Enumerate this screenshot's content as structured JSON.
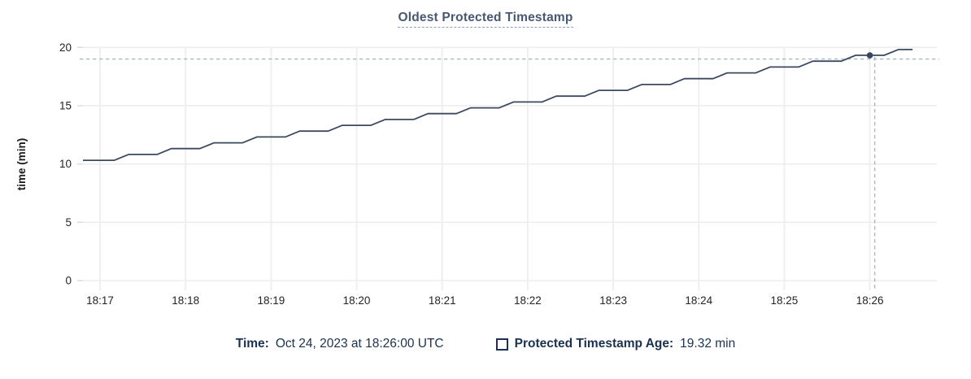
{
  "page": {
    "background": "#ffffff"
  },
  "chart": {
    "title": "Oldest Protected Timestamp",
    "title_color": "#475872"
  },
  "legend": {
    "time_label": "Time:",
    "time_value": "Oct 24, 2023 at 18:26:00 UTC",
    "series_label": "Protected Timestamp Age:",
    "series_value": "19.32 min",
    "text_color": "#1b3150"
  },
  "chart_data": {
    "type": "line",
    "title": "Oldest Protected Timestamp",
    "xlabel": "",
    "ylabel": "time (min)",
    "ylim": [
      0,
      20
    ],
    "yticks": [
      0,
      5,
      10,
      15,
      20
    ],
    "xtick_labels": [
      "18:17",
      "18:18",
      "18:19",
      "18:20",
      "18:21",
      "18:22",
      "18:23",
      "18:24",
      "18:25",
      "18:26"
    ],
    "x_domain_time": [
      "18:16:48",
      "18:26:47"
    ],
    "grid": true,
    "legend_position": "bottom",
    "line_color": "#3b4a60",
    "dot_color": "#39465e",
    "crosshair_color": "#a5bac9",
    "gridline_color": "#ededed",
    "axis_label_color": "#242424",
    "series": [
      {
        "name": "Protected Timestamp Age",
        "unit": "min",
        "points": [
          [
            "18:16:48",
            10.32
          ],
          [
            "18:17:10",
            10.32
          ],
          [
            "18:17:20",
            10.82
          ],
          [
            "18:17:40",
            10.82
          ],
          [
            "18:17:50",
            11.32
          ],
          [
            "18:18:10",
            11.32
          ],
          [
            "18:18:20",
            11.82
          ],
          [
            "18:18:40",
            11.82
          ],
          [
            "18:18:50",
            12.32
          ],
          [
            "18:19:10",
            12.32
          ],
          [
            "18:19:20",
            12.82
          ],
          [
            "18:19:40",
            12.82
          ],
          [
            "18:19:50",
            13.32
          ],
          [
            "18:20:10",
            13.32
          ],
          [
            "18:20:20",
            13.82
          ],
          [
            "18:20:40",
            13.82
          ],
          [
            "18:20:50",
            14.32
          ],
          [
            "18:21:10",
            14.32
          ],
          [
            "18:21:20",
            14.82
          ],
          [
            "18:21:40",
            14.82
          ],
          [
            "18:21:50",
            15.32
          ],
          [
            "18:22:10",
            15.32
          ],
          [
            "18:22:20",
            15.82
          ],
          [
            "18:22:40",
            15.82
          ],
          [
            "18:22:50",
            16.32
          ],
          [
            "18:23:10",
            16.32
          ],
          [
            "18:23:20",
            16.82
          ],
          [
            "18:23:40",
            16.82
          ],
          [
            "18:23:50",
            17.32
          ],
          [
            "18:24:10",
            17.32
          ],
          [
            "18:24:20",
            17.82
          ],
          [
            "18:24:40",
            17.82
          ],
          [
            "18:24:50",
            18.32
          ],
          [
            "18:25:10",
            18.32
          ],
          [
            "18:25:20",
            18.82
          ],
          [
            "18:25:40",
            18.82
          ],
          [
            "18:25:50",
            19.32
          ],
          [
            "18:26:10",
            19.32
          ],
          [
            "18:26:20",
            19.82
          ],
          [
            "18:26:30",
            19.82
          ]
        ]
      }
    ],
    "hover_point": {
      "time": "18:26:00",
      "value": 19.32
    }
  }
}
